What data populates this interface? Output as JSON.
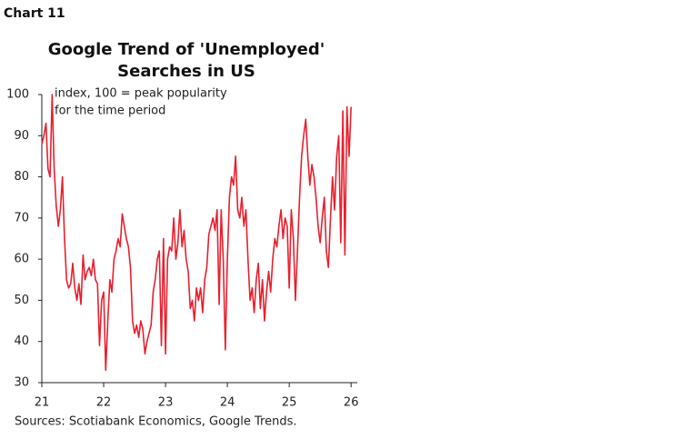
{
  "chart_data": {
    "type": "line",
    "label": "Chart 11",
    "title": [
      "Google Trend of 'Unemployed'",
      "Searches in US"
    ],
    "annotation": [
      "index, 100 = peak popularity",
      "for the time period"
    ],
    "source": "Sources: Scotiabank Economics, Google Trends.",
    "color": "#e8202e",
    "x": [
      21,
      21.033,
      21.067,
      21.1,
      21.133,
      21.167,
      21.2,
      21.233,
      21.267,
      21.3,
      21.333,
      21.367,
      21.4,
      21.433,
      21.467,
      21.5,
      21.533,
      21.567,
      21.6,
      21.633,
      21.667,
      21.7,
      21.733,
      21.767,
      21.8,
      21.833,
      21.867,
      21.9,
      21.933,
      21.967,
      22,
      22.033,
      22.067,
      22.1,
      22.133,
      22.167,
      22.2,
      22.233,
      22.267,
      22.3,
      22.333,
      22.367,
      22.4,
      22.433,
      22.467,
      22.5,
      22.533,
      22.567,
      22.6,
      22.633,
      22.667,
      22.7,
      22.733,
      22.767,
      22.8,
      22.833,
      22.867,
      22.9,
      22.933,
      22.967,
      23,
      23.033,
      23.067,
      23.1,
      23.133,
      23.167,
      23.2,
      23.233,
      23.267,
      23.3,
      23.333,
      23.367,
      23.4,
      23.433,
      23.467,
      23.5,
      23.533,
      23.567,
      23.6,
      23.633,
      23.667,
      23.7,
      23.733,
      23.767,
      23.8,
      23.833,
      23.867,
      23.9,
      23.933,
      23.967,
      24,
      24.033,
      24.067,
      24.1,
      24.133,
      24.167,
      24.2,
      24.233,
      24.267,
      24.3,
      24.333,
      24.367,
      24.4,
      24.433,
      24.467,
      24.5,
      24.533,
      24.567,
      24.6,
      24.633,
      24.667,
      24.7,
      24.733,
      24.767,
      24.8,
      24.833,
      24.867,
      24.9,
      24.933,
      24.967,
      25,
      25.033,
      25.067,
      25.1,
      25.133,
      25.167,
      25.2,
      25.233,
      25.267,
      25.3,
      25.333,
      25.367,
      25.4,
      25.433,
      25.467,
      25.5,
      25.533,
      25.567,
      25.6,
      25.633,
      25.667,
      25.7,
      25.733,
      25.767,
      25.8,
      25.833,
      25.867,
      25.9,
      25.933,
      25.967,
      26
    ],
    "values": [
      88,
      90,
      93,
      82,
      80,
      100,
      82,
      73,
      68,
      72,
      80,
      65,
      55,
      53,
      54,
      59,
      53,
      50,
      54,
      49,
      61,
      55,
      57,
      58,
      56,
      60,
      55,
      54,
      39,
      50,
      52,
      33,
      45,
      55,
      52,
      60,
      62,
      65,
      63,
      71,
      68,
      65,
      63,
      58,
      45,
      42,
      44,
      41,
      45,
      43,
      37,
      40,
      42,
      44,
      52,
      55,
      60,
      62,
      39,
      65,
      37,
      60,
      63,
      62,
      70,
      60,
      64,
      72,
      63,
      67,
      60,
      57,
      48,
      50,
      45,
      53,
      50,
      53,
      47,
      55,
      58,
      66,
      68,
      70,
      67,
      72,
      49,
      72,
      60,
      38,
      60,
      75,
      80,
      78,
      85,
      72,
      70,
      75,
      68,
      72,
      60,
      50,
      53,
      47,
      55,
      59,
      48,
      55,
      45,
      52,
      57,
      52,
      60,
      65,
      63,
      68,
      72,
      65,
      70,
      68,
      53,
      72,
      65,
      50,
      62,
      75,
      85,
      90,
      94,
      85,
      78,
      83,
      80,
      75,
      68,
      64,
      70,
      75,
      62,
      58,
      70,
      80,
      72,
      85,
      90,
      64,
      96,
      61,
      97,
      85,
      97
    ],
    "xlim": [
      21,
      26.1
    ],
    "xticks": [
      21,
      22,
      23,
      24,
      25,
      26
    ],
    "ylim": [
      30,
      100
    ],
    "yticks": [
      30,
      40,
      50,
      60,
      70,
      80,
      90,
      100
    ],
    "grid": false
  }
}
